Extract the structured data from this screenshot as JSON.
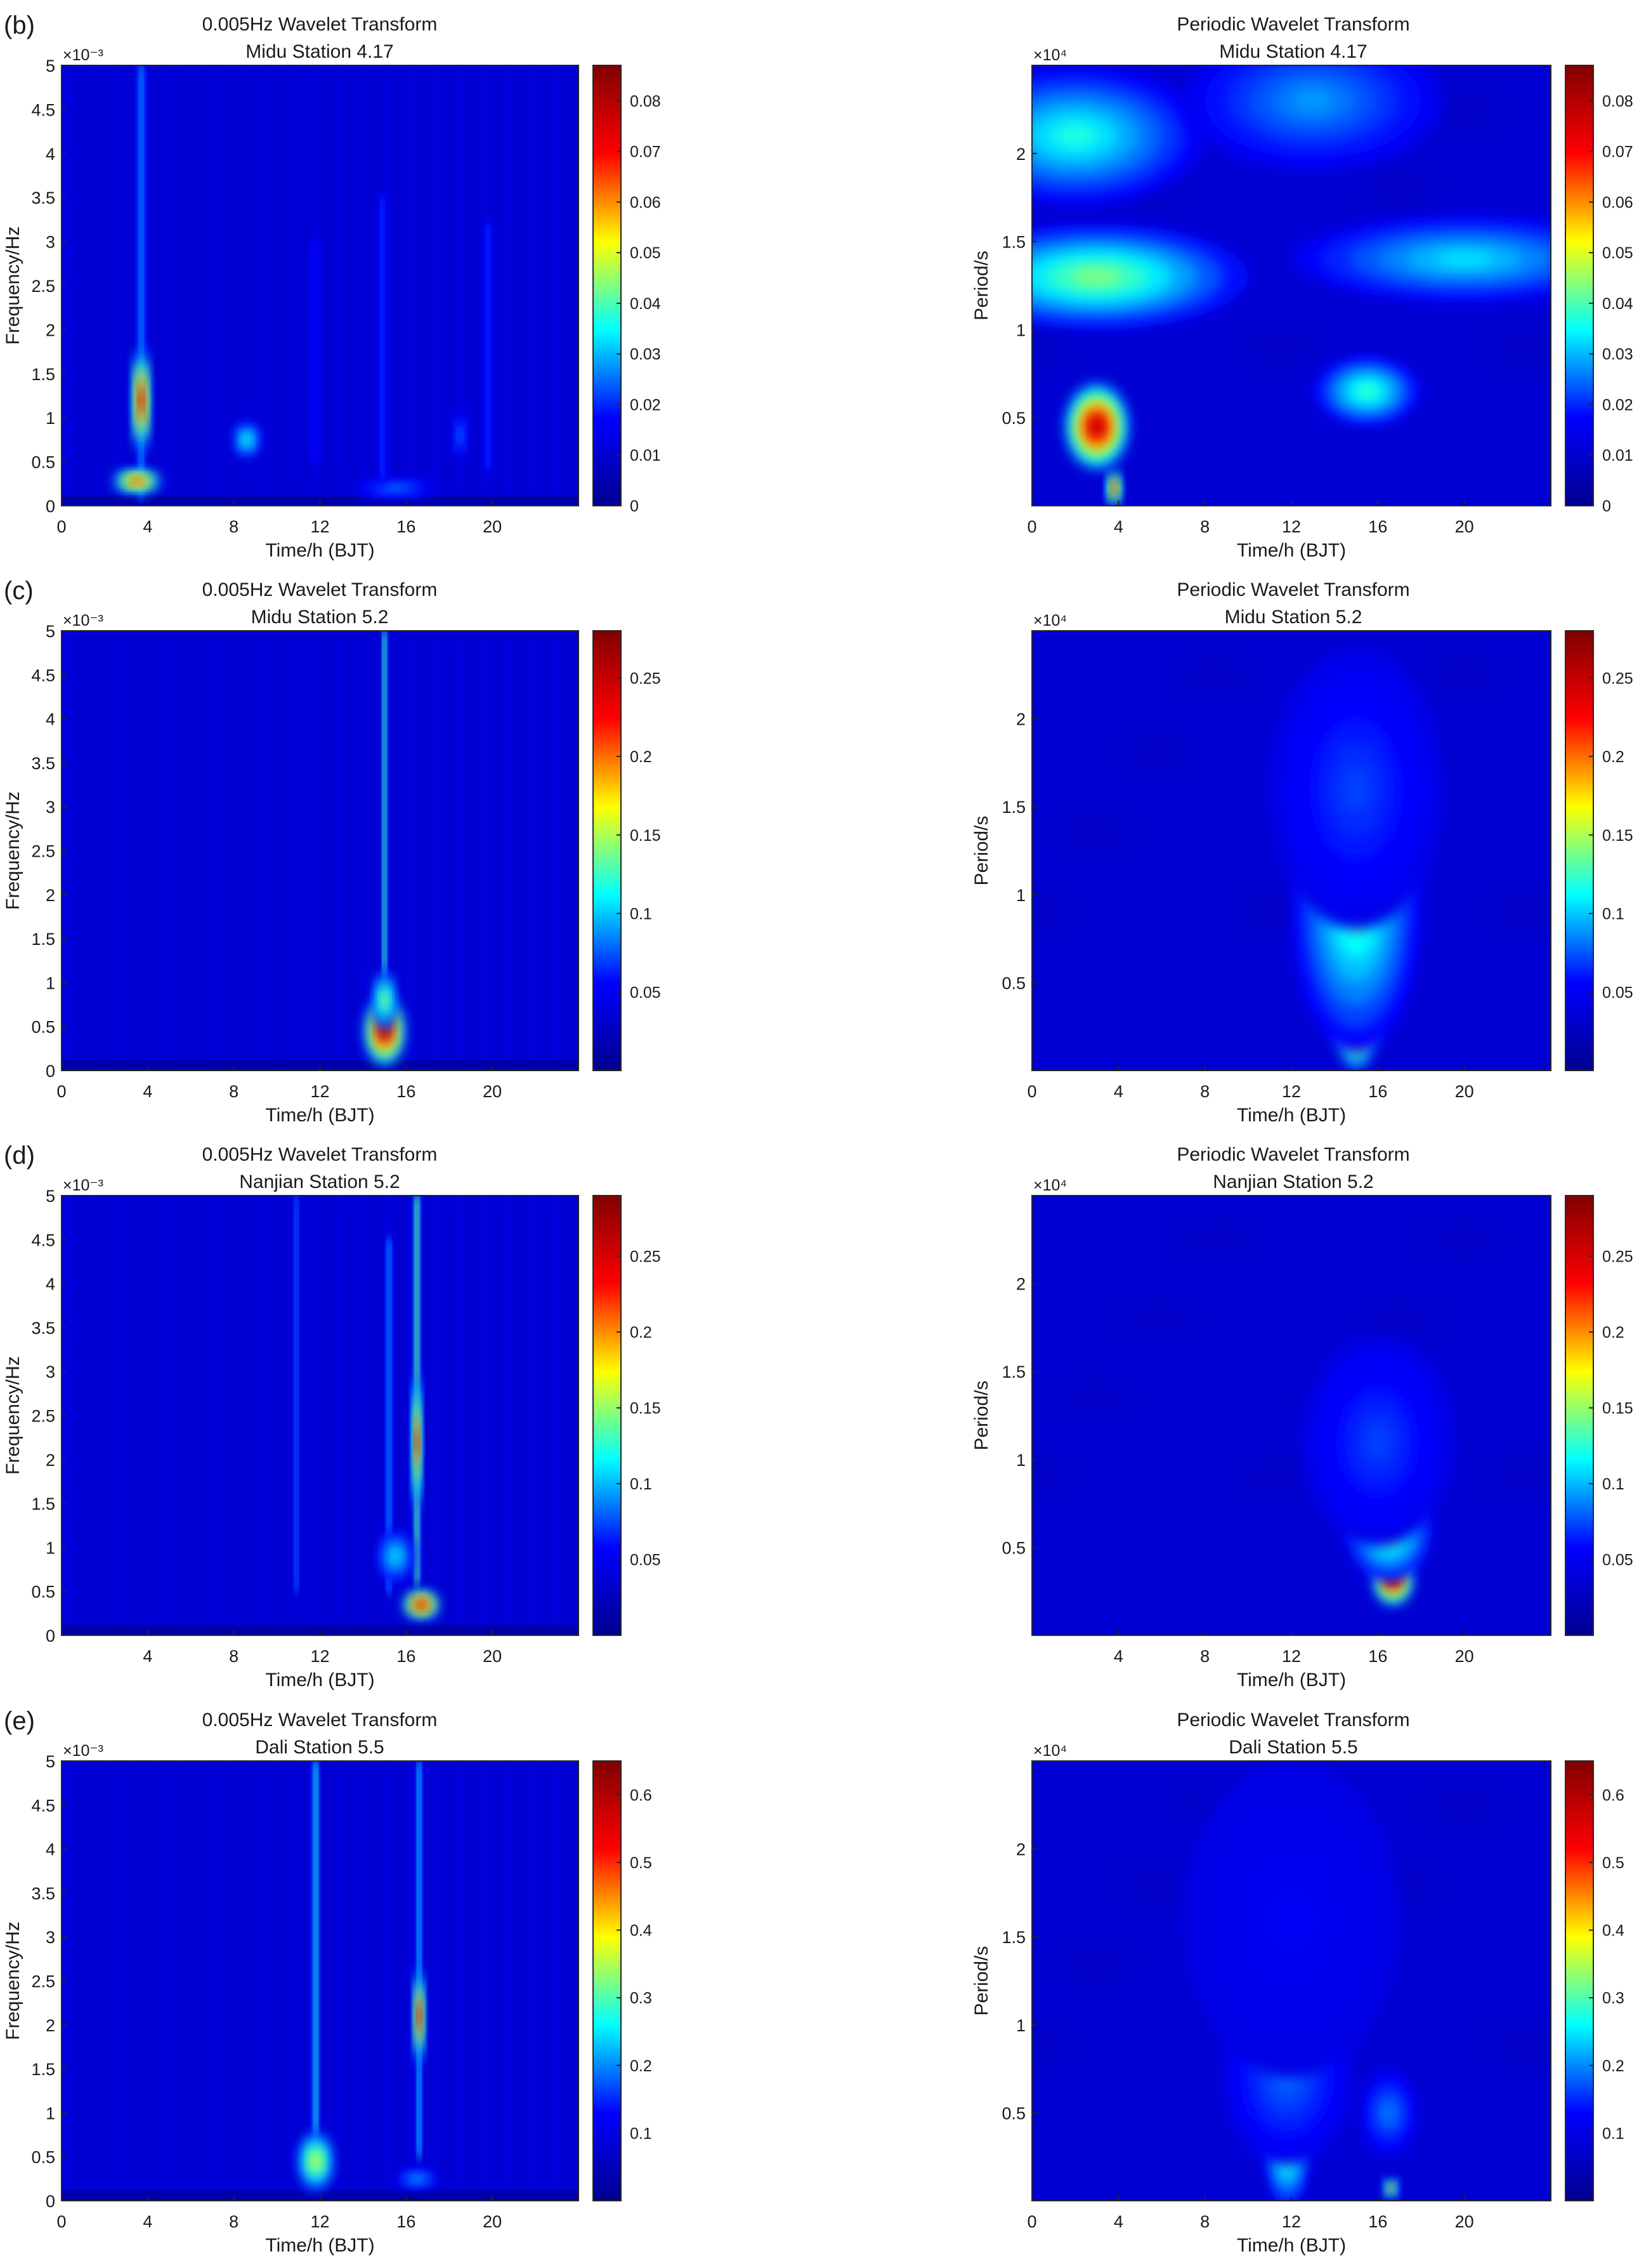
{
  "colorscale": [
    "#00008f",
    "#0000ff",
    "#00ffff",
    "#ffff00",
    "#ff0000",
    "#800000"
  ],
  "chart_data": [
    {
      "panel_label": "(b)",
      "type": "heatmap",
      "kind": "freq",
      "title": "0.005Hz Wavelet Transform",
      "subtitle": "Midu Station    4.17",
      "xlabel": "Time/h (BJT)",
      "ylabel": "Frequency/Hz",
      "xticks": [
        "0",
        "4",
        "8",
        "12",
        "16",
        "20"
      ],
      "xlim": [
        0,
        24
      ],
      "yticks": [
        "0",
        "0.5",
        "1",
        "1.5",
        "2",
        "2.5",
        "3",
        "3.5",
        "4",
        "4.5",
        "5"
      ],
      "ylim": [
        0,
        5
      ],
      "y_exponent": "×10⁻³",
      "colorbar_ticks": [
        "0",
        "0.01",
        "0.02",
        "0.03",
        "0.04",
        "0.05",
        "0.06",
        "0.07",
        "0.08"
      ],
      "colorbar_range": [
        0,
        0.087
      ],
      "features": [
        {
          "type": "streak",
          "x": 3.7,
          "y_low": 0.1,
          "y_high": 5,
          "width": 0.18,
          "intensity": 0.35
        },
        {
          "type": "blob",
          "x": 3.7,
          "y": 1.2,
          "rx": 0.35,
          "ry": 0.6,
          "intensity": 0.95
        },
        {
          "type": "blob",
          "x": 3.5,
          "y": 0.28,
          "rx": 1.1,
          "ry": 0.12,
          "intensity": 0.85
        },
        {
          "type": "blob",
          "x": 8.6,
          "y": 0.75,
          "rx": 0.6,
          "ry": 0.2,
          "intensity": 0.45
        },
        {
          "type": "blob",
          "x": 15.5,
          "y": 0.2,
          "rx": 2.0,
          "ry": 0.1,
          "intensity": 0.3
        },
        {
          "type": "streak",
          "x": 14.9,
          "y_low": 0.3,
          "y_high": 3.5,
          "width": 0.2,
          "intensity": 0.25
        },
        {
          "type": "streak",
          "x": 19.8,
          "y_low": 0.4,
          "y_high": 3.2,
          "width": 0.2,
          "intensity": 0.25
        },
        {
          "type": "streak",
          "x": 11.8,
          "y_low": 0.5,
          "y_high": 3.0,
          "width": 0.2,
          "intensity": 0.22
        },
        {
          "type": "blob",
          "x": 18.5,
          "y": 0.8,
          "rx": 0.3,
          "ry": 0.3,
          "intensity": 0.3
        }
      ]
    },
    {
      "panel_label": "",
      "type": "heatmap",
      "kind": "period",
      "title": "Periodic Wavelet Transform",
      "subtitle": "Midu Station    4.17",
      "xlabel": "Time/h (BJT)",
      "ylabel": "Period/s",
      "xticks": [
        "0",
        "4",
        "8",
        "12",
        "16",
        "20"
      ],
      "xlim": [
        0,
        24
      ],
      "yticks": [
        "0.5",
        "1",
        "1.5",
        "2"
      ],
      "ylim": [
        0,
        2.5
      ],
      "y_exponent": "×10⁴",
      "colorbar_ticks": [
        "0",
        "0.01",
        "0.02",
        "0.03",
        "0.04",
        "0.05",
        "0.06",
        "0.07",
        "0.08"
      ],
      "colorbar_range": [
        0,
        0.087
      ],
      "features": [
        {
          "type": "blob",
          "x": 3.0,
          "y": 0.45,
          "rx": 1.5,
          "ry": 0.25,
          "intensity": 0.95
        },
        {
          "type": "blob",
          "x": 3.8,
          "y": 0.1,
          "rx": 0.3,
          "ry": 0.1,
          "intensity": 0.9
        },
        {
          "type": "blob",
          "x": 15.5,
          "y": 0.65,
          "rx": 2.5,
          "ry": 0.2,
          "intensity": 0.45
        },
        {
          "type": "blob",
          "x": 3.0,
          "y": 1.3,
          "rx": 7.0,
          "ry": 0.3,
          "intensity": 0.5
        },
        {
          "type": "blob",
          "x": 20.0,
          "y": 1.4,
          "rx": 8.0,
          "ry": 0.25,
          "intensity": 0.38
        },
        {
          "type": "blob",
          "x": 2.0,
          "y": 2.1,
          "rx": 6.0,
          "ry": 0.4,
          "intensity": 0.42
        },
        {
          "type": "blob",
          "x": 13.0,
          "y": 2.3,
          "rx": 6.0,
          "ry": 0.4,
          "intensity": 0.32
        }
      ]
    },
    {
      "panel_label": "(c)",
      "type": "heatmap",
      "kind": "freq",
      "title": "0.005Hz Wavelet Transform",
      "subtitle": "Midu Station      5.2",
      "xlabel": "Time/h (BJT)",
      "ylabel": "Frequency/Hz",
      "xticks": [
        "0",
        "4",
        "8",
        "12",
        "16",
        "20"
      ],
      "xlim": [
        0,
        24
      ],
      "yticks": [
        "0",
        "0.5",
        "1",
        "1.5",
        "2",
        "2.5",
        "3",
        "3.5",
        "4",
        "4.5",
        "5"
      ],
      "ylim": [
        0,
        5
      ],
      "y_exponent": "×10⁻³",
      "colorbar_ticks": [
        "0.05",
        "0.1",
        "0.15",
        "0.2",
        "0.25"
      ],
      "colorbar_range": [
        0,
        0.28
      ],
      "features": [
        {
          "type": "streak",
          "x": 15.0,
          "y_low": 0.5,
          "y_high": 5,
          "width": 0.12,
          "intensity": 0.5
        },
        {
          "type": "blob",
          "x": 15.0,
          "y": 0.45,
          "rx": 0.9,
          "ry": 0.4,
          "intensity": 0.98
        },
        {
          "type": "blob",
          "x": 15.0,
          "y": 0.8,
          "rx": 0.5,
          "ry": 0.35,
          "intensity": 0.55
        }
      ]
    },
    {
      "panel_label": "",
      "type": "heatmap",
      "kind": "period",
      "title": "Periodic Wavelet Transform",
      "subtitle": "Midu Station      5.2",
      "xlabel": "Time/h (BJT)",
      "ylabel": "Period/s",
      "xticks": [
        "0",
        "4",
        "8",
        "12",
        "16",
        "20"
      ],
      "xlim": [
        0,
        24
      ],
      "yticks": [
        "0.5",
        "1",
        "1.5",
        "2"
      ],
      "ylim": [
        0,
        2.5
      ],
      "y_exponent": "×10⁴",
      "colorbar_ticks": [
        "0.05",
        "0.1",
        "0.15",
        "0.2",
        "0.25"
      ],
      "colorbar_range": [
        0,
        0.28
      ],
      "features": [
        {
          "type": "blob",
          "x": 15.0,
          "y": 0.35,
          "rx": 1.0,
          "ry": 0.35,
          "intensity": 0.98
        },
        {
          "type": "blob",
          "x": 15.0,
          "y": 0.9,
          "rx": 3.0,
          "ry": 0.8,
          "intensity": 0.45
        },
        {
          "type": "blob",
          "x": 15.0,
          "y": 1.6,
          "rx": 4.0,
          "ry": 0.8,
          "intensity": 0.25
        }
      ]
    },
    {
      "panel_label": "(d)",
      "type": "heatmap",
      "kind": "freq",
      "title": "0.005Hz Wavelet Transform",
      "subtitle": "Nanjian Station      5.2",
      "xlabel": "Time/h (BJT)",
      "ylabel": "Frequency/Hz",
      "xticks": [
        "4",
        "8",
        "12",
        "16",
        "20"
      ],
      "xlim": [
        0,
        24
      ],
      "yticks": [
        "0",
        "0.5",
        "1",
        "1.5",
        "2",
        "2.5",
        "3",
        "3.5",
        "4",
        "4.5",
        "5"
      ],
      "ylim": [
        0,
        5
      ],
      "y_exponent": "×10⁻³",
      "colorbar_ticks": [
        "0.05",
        "0.1",
        "0.15",
        "0.2",
        "0.25"
      ],
      "colorbar_range": [
        0,
        0.29
      ],
      "features": [
        {
          "type": "streak",
          "x": 16.5,
          "y_low": 0.6,
          "y_high": 5,
          "width": 0.14,
          "intensity": 0.55
        },
        {
          "type": "blob",
          "x": 16.5,
          "y": 2.2,
          "rx": 0.2,
          "ry": 0.8,
          "intensity": 0.9
        },
        {
          "type": "blob",
          "x": 16.7,
          "y": 0.35,
          "rx": 0.8,
          "ry": 0.15,
          "intensity": 0.98
        },
        {
          "type": "streak",
          "x": 15.2,
          "y_low": 0.5,
          "y_high": 4.5,
          "width": 0.15,
          "intensity": 0.35
        },
        {
          "type": "streak",
          "x": 10.9,
          "y_low": 0.5,
          "y_high": 5,
          "width": 0.12,
          "intensity": 0.3
        },
        {
          "type": "blob",
          "x": 15.5,
          "y": 0.9,
          "rx": 0.8,
          "ry": 0.3,
          "intensity": 0.4
        }
      ]
    },
    {
      "panel_label": "",
      "type": "heatmap",
      "kind": "period",
      "title": "Periodic Wavelet Transform",
      "subtitle": "Nanjian Station      5.2",
      "xlabel": "Time/h (BJT)",
      "ylabel": "Period/s",
      "xticks": [
        "4",
        "8",
        "12",
        "16",
        "20"
      ],
      "xlim": [
        0,
        24
      ],
      "yticks": [
        "0.5",
        "1",
        "1.5",
        "2"
      ],
      "ylim": [
        0,
        2.5
      ],
      "y_exponent": "×10⁴",
      "colorbar_ticks": [
        "0.05",
        "0.1",
        "0.15",
        "0.2",
        "0.25"
      ],
      "colorbar_range": [
        0,
        0.29
      ],
      "features": [
        {
          "type": "blob",
          "x": 16.7,
          "y": 0.32,
          "rx": 0.9,
          "ry": 0.15,
          "intensity": 0.98
        },
        {
          "type": "blob",
          "x": 16.5,
          "y": 0.6,
          "rx": 2.0,
          "ry": 0.3,
          "intensity": 0.5
        },
        {
          "type": "blob",
          "x": 16.0,
          "y": 1.1,
          "rx": 3.5,
          "ry": 0.6,
          "intensity": 0.25
        }
      ]
    },
    {
      "panel_label": "(e)",
      "type": "heatmap",
      "kind": "freq",
      "title": "0.005Hz Wavelet Transform",
      "subtitle": "Dali Station      5.5",
      "xlabel": "Time/h (BJT)",
      "ylabel": "Frequency/Hz",
      "xticks": [
        "0",
        "4",
        "8",
        "12",
        "16",
        "20"
      ],
      "xlim": [
        0,
        24
      ],
      "yticks": [
        "0",
        "0.5",
        "1",
        "1.5",
        "2",
        "2.5",
        "3",
        "3.5",
        "4",
        "4.5",
        "5"
      ],
      "ylim": [
        0,
        5
      ],
      "y_exponent": "×10⁻³",
      "colorbar_ticks": [
        "0.1",
        "0.2",
        "0.3",
        "0.4",
        "0.5",
        "0.6"
      ],
      "colorbar_range": [
        0,
        0.65
      ],
      "features": [
        {
          "type": "streak",
          "x": 11.8,
          "y_low": 0.5,
          "y_high": 5,
          "width": 0.15,
          "intensity": 0.45
        },
        {
          "type": "blob",
          "x": 11.8,
          "y": 0.45,
          "rx": 0.8,
          "ry": 0.35,
          "intensity": 0.6
        },
        {
          "type": "streak",
          "x": 16.6,
          "y_low": 0.5,
          "y_high": 5,
          "width": 0.13,
          "intensity": 0.4
        },
        {
          "type": "blob",
          "x": 16.6,
          "y": 2.1,
          "rx": 0.22,
          "ry": 0.55,
          "intensity": 0.95
        },
        {
          "type": "blob",
          "x": 16.5,
          "y": 0.25,
          "rx": 1.0,
          "ry": 0.1,
          "intensity": 0.35
        }
      ]
    },
    {
      "panel_label": "",
      "type": "heatmap",
      "kind": "period",
      "title": "Periodic Wavelet Transform",
      "subtitle": "Dali Station      5.5",
      "xlabel": "Time/h (BJT)",
      "ylabel": "Period/s",
      "xticks": [
        "0",
        "4",
        "8",
        "12",
        "16",
        "20"
      ],
      "xlim": [
        0,
        24
      ],
      "yticks": [
        "0.5",
        "1",
        "1.5",
        "2"
      ],
      "ylim": [
        0,
        2.5
      ],
      "y_exponent": "×10⁴",
      "colorbar_ticks": [
        "0.1",
        "0.2",
        "0.3",
        "0.4",
        "0.5",
        "0.6"
      ],
      "colorbar_range": [
        0,
        0.65
      ],
      "features": [
        {
          "type": "blob",
          "x": 11.8,
          "y": 0.3,
          "rx": 1.0,
          "ry": 0.35,
          "intensity": 0.5
        },
        {
          "type": "blob",
          "x": 11.8,
          "y": 0.7,
          "rx": 3.0,
          "ry": 0.5,
          "intensity": 0.28
        },
        {
          "type": "blob",
          "x": 16.6,
          "y": 0.07,
          "rx": 0.3,
          "ry": 0.05,
          "intensity": 0.75
        },
        {
          "type": "blob",
          "x": 16.5,
          "y": 0.5,
          "rx": 1.3,
          "ry": 0.25,
          "intensity": 0.3
        },
        {
          "type": "blob",
          "x": 12.0,
          "y": 1.6,
          "rx": 5.0,
          "ry": 0.9,
          "intensity": 0.18
        }
      ]
    }
  ]
}
